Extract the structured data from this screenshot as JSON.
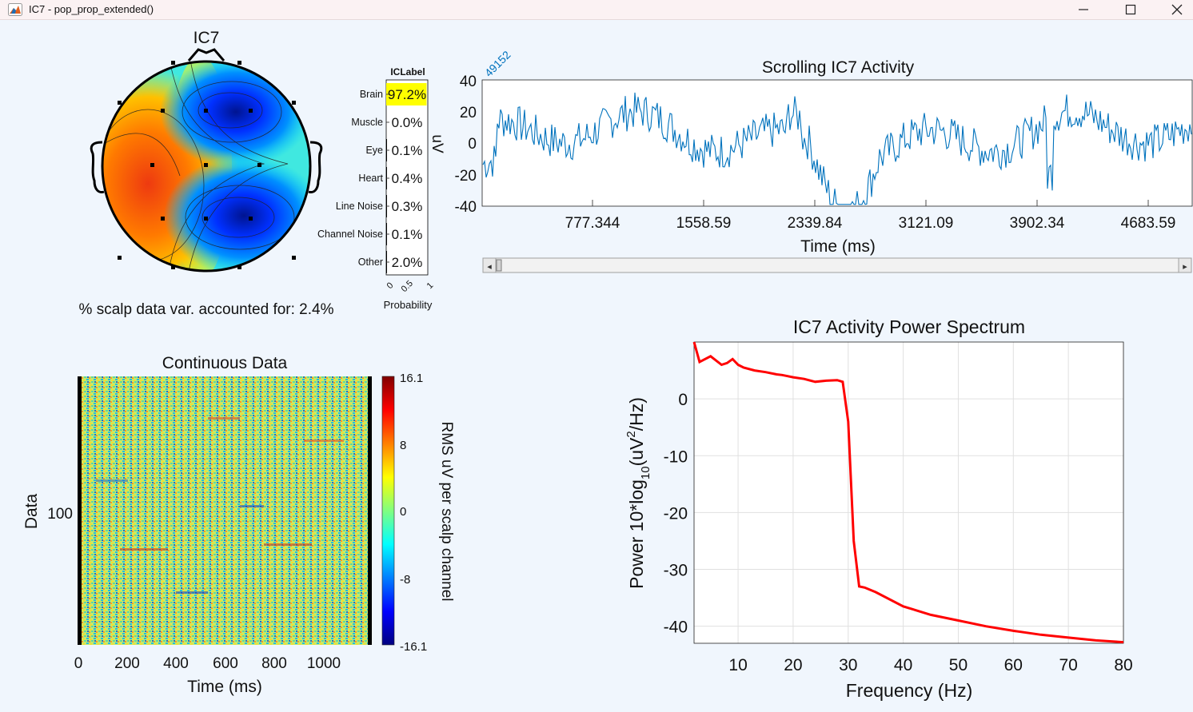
{
  "window": {
    "title": "IC7 - pop_prop_extended()",
    "icon": "matlab-icon",
    "buttons": [
      "minimize-icon",
      "maximize-icon",
      "close-icon"
    ]
  },
  "topoplot": {
    "title": "IC7",
    "variance_text": "% scalp data var. accounted for: 2.4%"
  },
  "iclabel": {
    "title": "ICLabel",
    "xlabel": "Probability",
    "ticks": [
      "0",
      "0.5",
      "1"
    ],
    "highlight_color": "#ffff00",
    "classes": [
      {
        "name": "Brain",
        "value": "97.2%",
        "prob": 0.972
      },
      {
        "name": "Muscle",
        "value": "0.0%",
        "prob": 0.0
      },
      {
        "name": "Eye",
        "value": "0.1%",
        "prob": 0.001
      },
      {
        "name": "Heart",
        "value": "0.4%",
        "prob": 0.004
      },
      {
        "name": "Line Noise",
        "value": "0.3%",
        "prob": 0.003
      },
      {
        "name": "Channel Noise",
        "value": "0.1%",
        "prob": 0.001
      },
      {
        "name": "Other",
        "value": "2.0%",
        "prob": 0.02
      }
    ]
  },
  "scrolling": {
    "title": "Scrolling IC7 Activity",
    "xlabel": "Time (ms)",
    "ylabel": "uV",
    "corner_label": "49152",
    "yticks": [
      "40",
      "20",
      "0",
      "-20",
      "-40"
    ],
    "xticks": [
      "777.344",
      "1558.59",
      "2339.84",
      "3121.09",
      "3902.34",
      "4683.59"
    ],
    "line_color": "#0072bd",
    "scrollbar": {
      "left": "◂",
      "right": "▸",
      "position": 0.0
    }
  },
  "erpimage": {
    "title": "Continuous Data",
    "xlabel": "Time (ms)",
    "ylabel": "Data",
    "ytick": "100",
    "xticks": [
      "0",
      "200",
      "400",
      "600",
      "800",
      "1000"
    ],
    "colorbar_label": "RMS uV per scalp channel",
    "colorbar_ticks": [
      "16.1",
      "8",
      "0",
      "-8",
      "-16.1"
    ]
  },
  "chart_data": [
    {
      "type": "line",
      "title": "IC7 Activity Power Spectrum",
      "xlabel": "Frequency (Hz)",
      "ylabel_parts": [
        "Power 10*log",
        "10",
        "(uV",
        "2",
        "/Hz)"
      ],
      "xticks": [
        "10",
        "20",
        "30",
        "40",
        "50",
        "60",
        "70",
        "80"
      ],
      "yticks": [
        "0",
        "-10",
        "-20",
        "-30",
        "-40"
      ],
      "xlim": [
        2,
        80
      ],
      "ylim": [
        -43,
        10
      ],
      "grid": true,
      "series": [
        {
          "color": "#ff0000",
          "x": [
            2,
            3,
            5,
            7,
            8,
            9,
            10,
            11,
            13,
            15,
            17,
            18,
            19,
            20,
            22,
            24,
            26,
            28,
            29,
            30,
            31,
            32,
            33,
            35,
            40,
            45,
            50,
            55,
            60,
            65,
            70,
            75,
            80
          ],
          "y": [
            10,
            6.5,
            7.5,
            6,
            6.3,
            7,
            6,
            5.5,
            5,
            4.7,
            4.3,
            4.2,
            4,
            3.8,
            3.5,
            3,
            3.2,
            3.3,
            3,
            -4,
            -25,
            -33,
            -33.2,
            -34,
            -36.5,
            -38,
            -39,
            -40,
            -40.8,
            -41.5,
            -42,
            -42.5,
            -42.8
          ]
        }
      ]
    }
  ]
}
